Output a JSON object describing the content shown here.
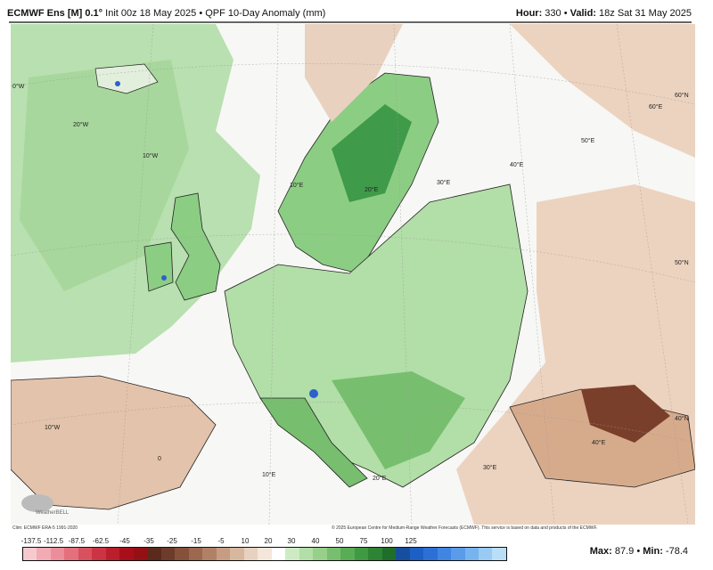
{
  "header": {
    "model": "ECMWF Ens [M] 0.1°",
    "init": "Init 00z 18 May 2025",
    "product": "QPF 10-Day Anomaly (mm)",
    "hour_label": "Hour:",
    "hour": "330",
    "valid_label": "Valid:",
    "valid": "18z Sat 31 May 2025"
  },
  "map": {
    "grid_labels": [
      "0°W",
      "20°W",
      "10°W",
      "10°E",
      "20°E",
      "30°E",
      "40°E",
      "50°E",
      "60°E",
      "60°N",
      "50°N",
      "40°N",
      "10°W",
      "0",
      "10°E",
      "20°E",
      "30°E",
      "40°E"
    ],
    "colors": {
      "wet_light": "#b9e0b0",
      "wet": "#8ccd84",
      "wet_dark": "#3f9a4a",
      "dry_light": "#ecd3bf",
      "dry": "#d6ab8c",
      "dry_dark": "#7a3f2a",
      "very_wet": "#2c5fd0",
      "border": "#222"
    },
    "logo": "WeatherBELL"
  },
  "footer": {
    "clim": "Clim: ECMWF ERA-5 1991-2020",
    "copyright": "© 2025 European Centre for Medium-Range Weather Forecasts (ECMWF). This service is based on data and products of the ECMWF."
  },
  "legend": {
    "labels": [
      "-137.5",
      "-112.5",
      "-87.5",
      "-62.5",
      "-45",
      "-35",
      "-25",
      "-15",
      "-5",
      "10",
      "20",
      "30",
      "40",
      "50",
      "75",
      "100",
      "125"
    ],
    "colors": [
      "#f7c9cf",
      "#f2aab3",
      "#ec8e99",
      "#e4707e",
      "#d9505f",
      "#cc3443",
      "#bb1e2c",
      "#a80f1b",
      "#951014",
      "#5a2a1c",
      "#6e3b2a",
      "#86513b",
      "#9c684f",
      "#b18166",
      "#c69d83",
      "#d8b79f",
      "#e8d1be",
      "#f4e6da",
      "#ffffff",
      "#cdeac4",
      "#b2dea7",
      "#96d08b",
      "#77bf6e",
      "#58ad55",
      "#3f9a43",
      "#2d8435",
      "#1f6f2a",
      "#164f9e",
      "#1d5fc4",
      "#2c70d6",
      "#3f85e2",
      "#5a9cea",
      "#77b3ef",
      "#98caf3",
      "#b9def7"
    ],
    "max_label": "Max:",
    "max": "87.9",
    "min_label": "Min:",
    "min": "-78.4"
  }
}
